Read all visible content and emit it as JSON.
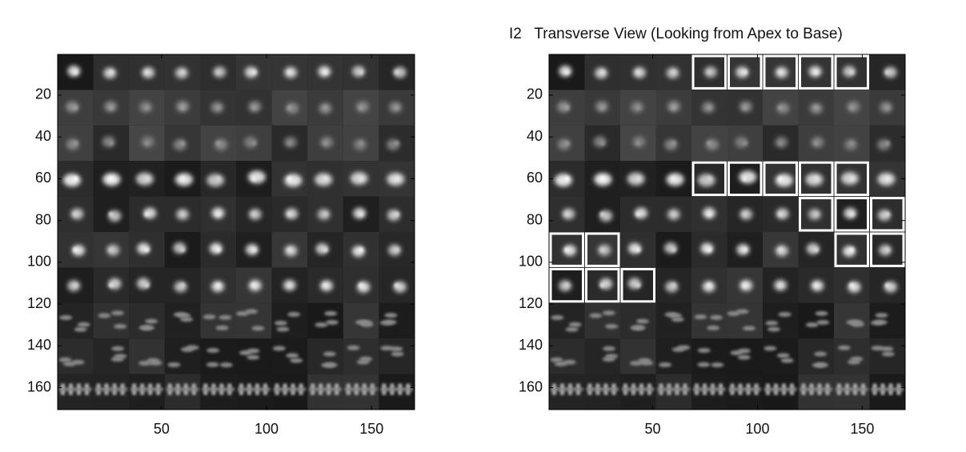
{
  "chart_data": [
    {
      "type": "image",
      "xlim": [
        0.5,
        170.5
      ],
      "ylim": [
        0.5,
        170.5
      ],
      "y_reversed": true,
      "xticks": [
        50,
        100,
        150
      ],
      "yticks": [
        20,
        40,
        60,
        80,
        100,
        120,
        140,
        160
      ]
    },
    {
      "type": "image",
      "title": "I2   Transverse View (Looking from Apex to Base)",
      "xlim": [
        0.5,
        170.5
      ],
      "ylim": [
        0.5,
        170.5
      ],
      "y_reversed": true,
      "xticks": [
        50,
        100,
        150
      ],
      "yticks": [
        20,
        40,
        60,
        80,
        100,
        120,
        140,
        160
      ]
    }
  ]
}
